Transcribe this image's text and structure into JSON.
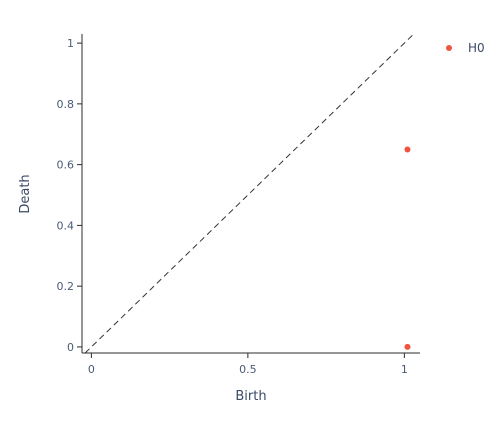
{
  "chart_data": {
    "type": "scatter",
    "title": "",
    "xlabel": "Birth",
    "ylabel": "Death",
    "xlim": [
      -0.03,
      1.05
    ],
    "ylim": [
      -0.02,
      1.03
    ],
    "x_ticks": [
      0,
      0.5,
      1
    ],
    "x_tick_labels": [
      "0",
      "0.5",
      "1"
    ],
    "y_ticks": [
      0,
      0.2,
      0.4,
      0.6,
      0.8,
      1
    ],
    "y_tick_labels": [
      "0",
      "0.2",
      "0.4",
      "0.6",
      "0.8",
      "1"
    ],
    "grid": false,
    "legend_position": "top-right",
    "diagonal": {
      "style": "dashed",
      "color": "#333333"
    },
    "series": [
      {
        "name": "H0",
        "color": "#f0543c",
        "points": [
          {
            "x": 1.01,
            "y": 0
          },
          {
            "x": 1.01,
            "y": 0.65
          }
        ]
      }
    ]
  }
}
